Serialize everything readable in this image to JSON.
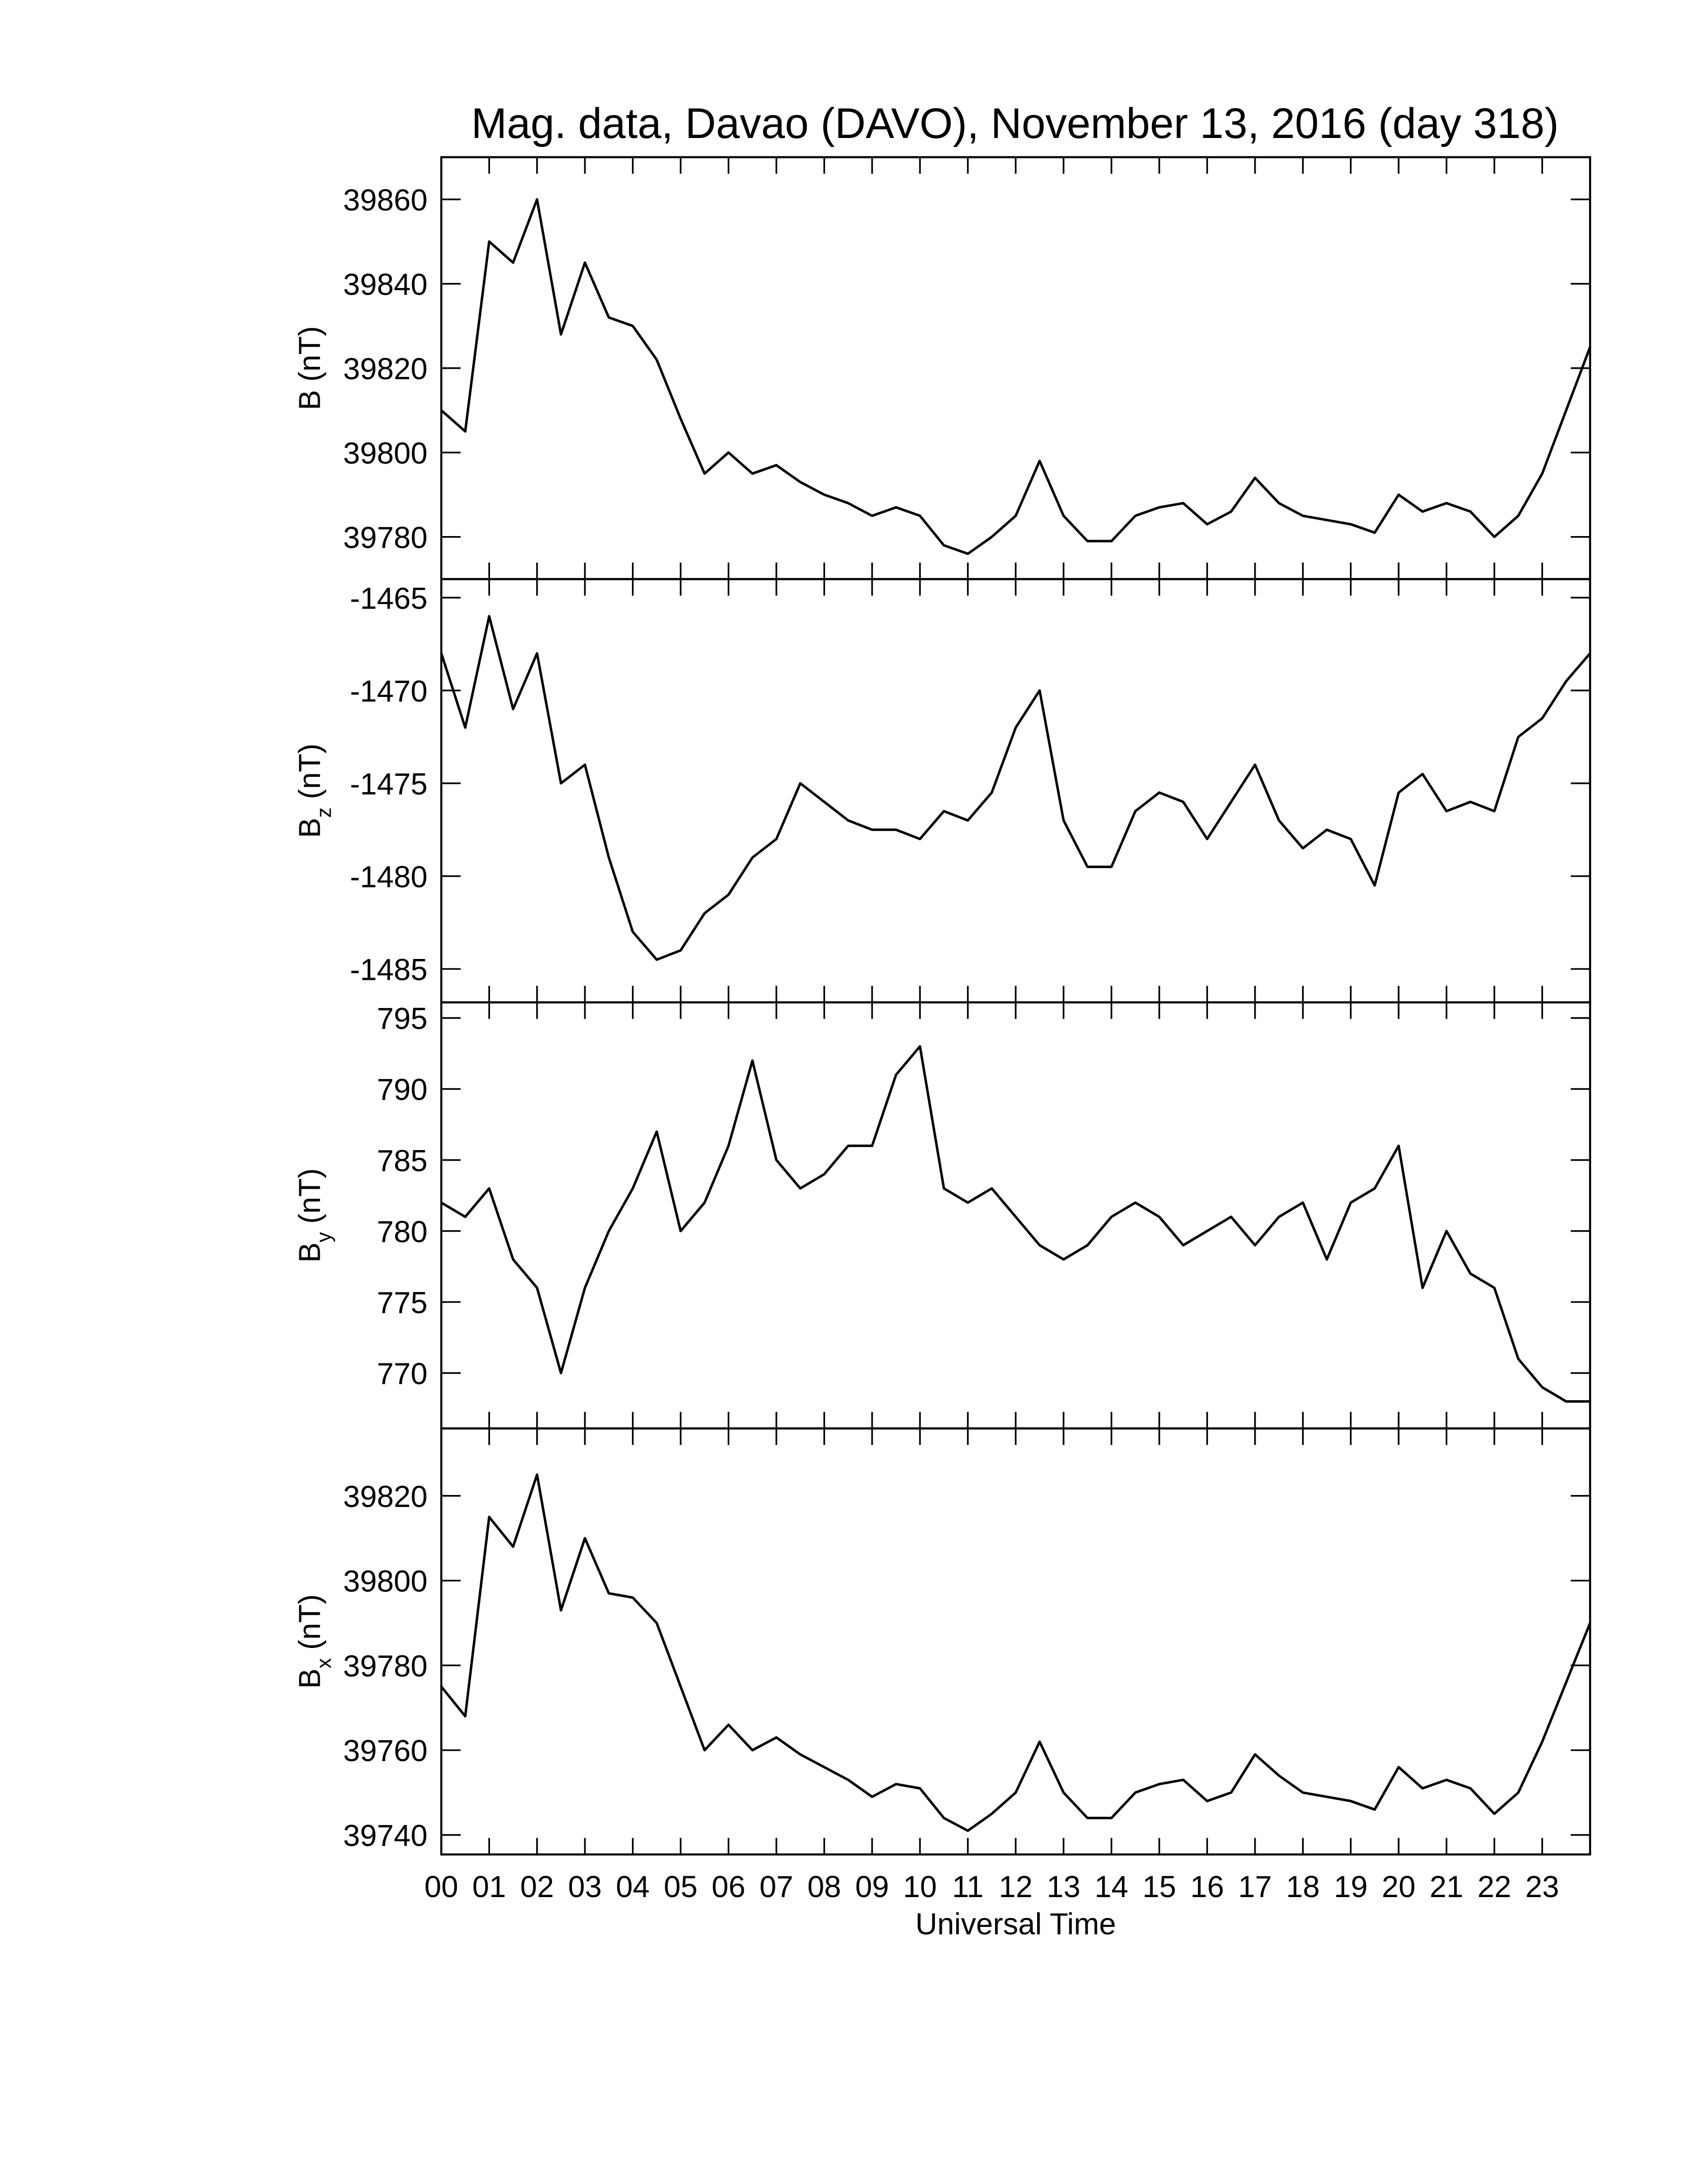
{
  "chart_data": [
    {
      "type": "line",
      "title": "Mag. data, Davao (DAVO), November 13, 2016 (day 318)",
      "ylabel": "B",
      "ylabel_unit": "(nT)",
      "color": "#000000",
      "x": [
        0,
        0.5,
        1,
        1.5,
        2,
        2.5,
        3,
        3.5,
        4,
        4.5,
        5,
        5.5,
        6,
        6.5,
        7,
        7.5,
        8,
        8.5,
        9,
        9.5,
        10,
        10.5,
        11,
        11.5,
        12,
        12.5,
        13,
        13.5,
        14,
        14.5,
        15,
        15.5,
        16,
        16.5,
        17,
        17.5,
        18,
        18.5,
        19,
        19.5,
        20,
        20.5,
        21,
        21.5,
        22,
        22.5,
        23,
        23.5,
        24
      ],
      "values": [
        39810,
        39805,
        39850,
        39845,
        39860,
        39828,
        39845,
        39832,
        39830,
        39822,
        39808,
        39795,
        39800,
        39795,
        39797,
        39793,
        39790,
        39788,
        39785,
        39787,
        39785,
        39778,
        39776,
        39780,
        39785,
        39798,
        39785,
        39779,
        39779,
        39785,
        39787,
        39788,
        39783,
        39786,
        39794,
        39788,
        39785,
        39784,
        39783,
        39781,
        39790,
        39786,
        39788,
        39786,
        39780,
        39785,
        39795,
        39810,
        39825
      ],
      "xlim": [
        0,
        24
      ],
      "ylim": [
        39770,
        39870
      ],
      "yticks": [
        39780,
        39800,
        39820,
        39840,
        39860
      ]
    },
    {
      "type": "line",
      "ylabel": "B",
      "ylabel_sub": "z",
      "ylabel_unit": "(nT)",
      "color": "#000000",
      "x": [
        0,
        0.5,
        1,
        1.5,
        2,
        2.5,
        3,
        3.5,
        4,
        4.5,
        5,
        5.5,
        6,
        6.5,
        7,
        7.5,
        8,
        8.5,
        9,
        9.5,
        10,
        10.5,
        11,
        11.5,
        12,
        12.5,
        13,
        13.5,
        14,
        14.5,
        15,
        15.5,
        16,
        16.5,
        17,
        17.5,
        18,
        18.5,
        19,
        19.5,
        20,
        20.5,
        21,
        21.5,
        22,
        22.5,
        23,
        23.5,
        24
      ],
      "values": [
        -1468,
        -1472,
        -1466,
        -1471,
        -1468,
        -1475,
        -1474,
        -1479,
        -1483,
        -1484.5,
        -1484,
        -1482,
        -1481,
        -1479,
        -1478,
        -1475,
        -1476,
        -1477,
        -1477.5,
        -1477.5,
        -1478,
        -1476.5,
        -1477,
        -1475.5,
        -1472,
        -1470,
        -1477,
        -1479.5,
        -1479.5,
        -1476.5,
        -1475.5,
        -1476,
        -1478,
        -1476,
        -1474,
        -1477,
        -1478.5,
        -1477.5,
        -1478,
        -1480.5,
        -1475.5,
        -1474.5,
        -1476.5,
        -1476,
        -1476.5,
        -1472.5,
        -1471.5,
        -1469.5,
        -1468
      ],
      "xlim": [
        0,
        24
      ],
      "ylim": [
        -1486.8,
        -1464.0
      ],
      "yticks": [
        -1485,
        -1480,
        -1475,
        -1470,
        -1465
      ]
    },
    {
      "type": "line",
      "ylabel": "B",
      "ylabel_sub": "y",
      "ylabel_unit": "(nT)",
      "color": "#000000",
      "x": [
        0,
        0.5,
        1,
        1.5,
        2,
        2.5,
        3,
        3.5,
        4,
        4.5,
        5,
        5.5,
        6,
        6.5,
        7,
        7.5,
        8,
        8.5,
        9,
        9.5,
        10,
        10.5,
        11,
        11.5,
        12,
        12.5,
        13,
        13.5,
        14,
        14.5,
        15,
        15.5,
        16,
        16.5,
        17,
        17.5,
        18,
        18.5,
        19,
        19.5,
        20,
        20.5,
        21,
        21.5,
        22,
        22.5,
        23,
        23.5,
        24
      ],
      "values": [
        782,
        781,
        783,
        778,
        776,
        770,
        776,
        780,
        783,
        787,
        780,
        782,
        786,
        792,
        785,
        783,
        784,
        786,
        786,
        791,
        793,
        783,
        782,
        783,
        781,
        779,
        778,
        779,
        781,
        782,
        781,
        779,
        780,
        781,
        779,
        781,
        782,
        778,
        782,
        783,
        786,
        776,
        780,
        777,
        776,
        771,
        769,
        768,
        768
      ],
      "xlim": [
        0,
        24
      ],
      "ylim": [
        766.1,
        796.1
      ],
      "yticks": [
        770,
        775,
        780,
        785,
        790,
        795
      ]
    },
    {
      "type": "line",
      "ylabel": "B",
      "ylabel_sub": "x",
      "ylabel_unit": "(nT)",
      "xlabel": "Universal Time",
      "color": "#000000",
      "x": [
        0,
        0.5,
        1,
        1.5,
        2,
        2.5,
        3,
        3.5,
        4,
        4.5,
        5,
        5.5,
        6,
        6.5,
        7,
        7.5,
        8,
        8.5,
        9,
        9.5,
        10,
        10.5,
        11,
        11.5,
        12,
        12.5,
        13,
        13.5,
        14,
        14.5,
        15,
        15.5,
        16,
        16.5,
        17,
        17.5,
        18,
        18.5,
        19,
        19.5,
        20,
        20.5,
        21,
        21.5,
        22,
        22.5,
        23,
        23.5,
        24
      ],
      "values": [
        39775,
        39768,
        39815,
        39808,
        39825,
        39793,
        39810,
        39797,
        39796,
        39790,
        39775,
        39760,
        39766,
        39760,
        39763,
        39759,
        39756,
        39753,
        39749,
        39752,
        39751,
        39744,
        39741,
        39745,
        39750,
        39762,
        39750,
        39744,
        39744,
        39750,
        39752,
        39753,
        39748,
        39750,
        39759,
        39754,
        39750,
        39749,
        39748,
        39746,
        39756,
        39751,
        39753,
        39751,
        39745,
        39750,
        39762,
        39776,
        39790
      ],
      "xlim": [
        0,
        24
      ],
      "ylim": [
        39735.4,
        39835.9
      ],
      "yticks": [
        39740,
        39760,
        39780,
        39800,
        39820
      ],
      "xticks": [
        {
          "value": 0,
          "label": "00"
        },
        {
          "value": 1,
          "label": "01"
        },
        {
          "value": 2,
          "label": "02"
        },
        {
          "value": 3,
          "label": "03"
        },
        {
          "value": 4,
          "label": "04"
        },
        {
          "value": 5,
          "label": "05"
        },
        {
          "value": 6,
          "label": "06"
        },
        {
          "value": 7,
          "label": "07"
        },
        {
          "value": 8,
          "label": "08"
        },
        {
          "value": 9,
          "label": "09"
        },
        {
          "value": 10,
          "label": "10"
        },
        {
          "value": 11,
          "label": "11"
        },
        {
          "value": 12,
          "label": "12"
        },
        {
          "value": 13,
          "label": "13"
        },
        {
          "value": 14,
          "label": "14"
        },
        {
          "value": 15,
          "label": "15"
        },
        {
          "value": 16,
          "label": "16"
        },
        {
          "value": 17,
          "label": "17"
        },
        {
          "value": 18,
          "label": "18"
        },
        {
          "value": 19,
          "label": "19"
        },
        {
          "value": 20,
          "label": "20"
        },
        {
          "value": 21,
          "label": "21"
        },
        {
          "value": 22,
          "label": "22"
        },
        {
          "value": 23,
          "label": "23"
        }
      ]
    }
  ]
}
